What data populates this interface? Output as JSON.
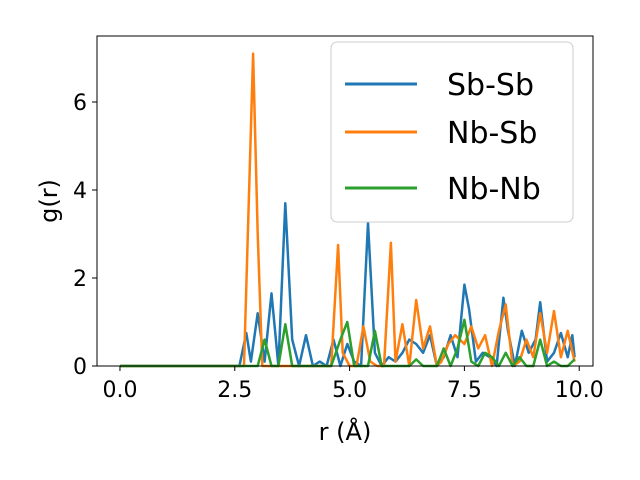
{
  "chart_data": {
    "type": "line",
    "xlabel": "r (Å)",
    "ylabel": "g(r)",
    "xlim": [
      -0.5,
      10.3
    ],
    "ylim": [
      0,
      7.5
    ],
    "xticks": [
      0.0,
      2.5,
      5.0,
      7.5,
      10.0
    ],
    "xtick_labels": [
      "0.0",
      "2.5",
      "5.0",
      "7.5",
      "10.0"
    ],
    "yticks": [
      0,
      2,
      4,
      6
    ],
    "ytick_labels": [
      "0",
      "2",
      "4",
      "6"
    ],
    "grid": false,
    "legend_position": "upper right",
    "series": [
      {
        "name": "Sb-Sb",
        "color": "#1f77b4",
        "x": [
          0.0,
          2.6,
          2.75,
          2.85,
          3.0,
          3.15,
          3.3,
          3.45,
          3.6,
          3.75,
          3.9,
          4.05,
          4.2,
          4.35,
          4.5,
          4.65,
          4.8,
          4.95,
          5.1,
          5.25,
          5.4,
          5.55,
          5.7,
          5.85,
          6.0,
          6.15,
          6.3,
          6.45,
          6.6,
          6.75,
          6.9,
          7.05,
          7.2,
          7.35,
          7.5,
          7.6,
          7.75,
          7.9,
          8.05,
          8.2,
          8.35,
          8.45,
          8.6,
          8.75,
          8.9,
          9.05,
          9.15,
          9.3,
          9.45,
          9.6,
          9.75,
          9.85,
          9.9
        ],
        "y": [
          0.0,
          0.0,
          0.75,
          0.1,
          1.2,
          0.1,
          1.65,
          0.0,
          3.7,
          0.6,
          0.0,
          0.7,
          0.0,
          0.1,
          0.0,
          0.6,
          0.0,
          0.5,
          0.1,
          0.0,
          3.25,
          0.3,
          0.0,
          0.2,
          0.1,
          0.3,
          0.6,
          0.5,
          0.3,
          0.7,
          0.0,
          0.2,
          0.7,
          0.2,
          1.85,
          1.3,
          0.1,
          0.3,
          0.2,
          0.0,
          1.55,
          0.8,
          0.0,
          0.8,
          0.3,
          0.6,
          1.45,
          0.1,
          0.3,
          0.75,
          0.2,
          0.7,
          0.2
        ]
      },
      {
        "name": "Nb-Sb",
        "color": "#ff7f0e",
        "x": [
          0.0,
          2.7,
          2.9,
          3.0,
          3.1,
          3.7,
          4.0,
          4.3,
          4.6,
          4.75,
          4.85,
          5.0,
          5.15,
          5.3,
          5.45,
          5.6,
          5.75,
          5.9,
          6.0,
          6.15,
          6.3,
          6.45,
          6.6,
          6.75,
          6.9,
          7.0,
          7.15,
          7.3,
          7.5,
          7.65,
          7.8,
          7.95,
          8.1,
          8.25,
          8.4,
          8.55,
          8.7,
          8.85,
          9.0,
          9.15,
          9.3,
          9.45,
          9.6,
          9.75,
          9.9
        ],
        "y": [
          0.0,
          0.0,
          7.1,
          3.0,
          0.0,
          0.0,
          0.0,
          0.0,
          0.0,
          2.75,
          0.3,
          0.0,
          0.0,
          0.9,
          0.1,
          0.0,
          0.0,
          2.8,
          0.1,
          0.95,
          0.0,
          1.5,
          0.4,
          0.9,
          0.0,
          0.1,
          0.5,
          0.7,
          0.5,
          0.9,
          0.4,
          0.7,
          0.0,
          0.8,
          1.4,
          0.0,
          0.1,
          0.6,
          0.2,
          1.2,
          0.3,
          1.25,
          0.2,
          0.8,
          0.1
        ]
      },
      {
        "name": "Nb-Nb",
        "color": "#2ca02c",
        "x": [
          0.0,
          3.0,
          3.15,
          3.3,
          3.45,
          3.6,
          3.75,
          4.6,
          4.8,
          4.95,
          5.1,
          5.25,
          5.4,
          5.55,
          5.7,
          5.85,
          6.0,
          6.3,
          6.45,
          6.6,
          6.9,
          7.05,
          7.2,
          7.35,
          7.5,
          7.65,
          7.8,
          7.95,
          8.1,
          8.25,
          8.4,
          8.55,
          8.7,
          8.85,
          9.0,
          9.15,
          9.3,
          9.45,
          9.6,
          9.75,
          9.9
        ],
        "y": [
          0.0,
          0.0,
          0.6,
          0.0,
          0.0,
          0.95,
          0.0,
          0.0,
          0.6,
          1.0,
          0.0,
          0.0,
          0.0,
          0.8,
          0.0,
          0.0,
          0.0,
          0.0,
          0.15,
          0.0,
          0.0,
          0.4,
          0.0,
          0.4,
          1.05,
          0.1,
          0.0,
          0.3,
          0.2,
          0.0,
          0.3,
          0.0,
          0.2,
          0.0,
          0.0,
          0.6,
          0.0,
          0.1,
          0.0,
          0.0,
          0.15
        ]
      }
    ]
  }
}
